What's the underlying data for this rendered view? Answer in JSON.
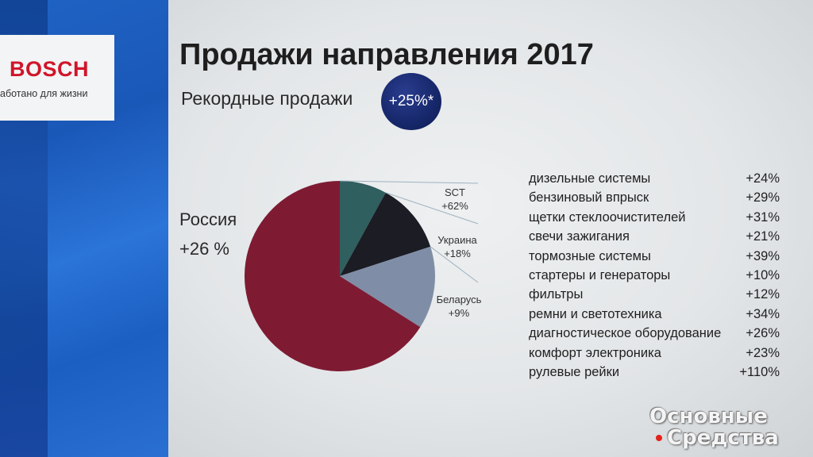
{
  "logo": {
    "brand": "BOSCH",
    "tagline": "аботано для жизни"
  },
  "title": "Продажи направления 2017",
  "subtitle": "Рекордные продажи",
  "badge": "+25%*",
  "chart_data": {
    "type": "pie",
    "title": "",
    "slices": [
      {
        "label": "Россия",
        "value": "+26 %",
        "share": 0.66,
        "color": "#7e1b33"
      },
      {
        "label": "SCT",
        "value": "+62%",
        "share": 0.08,
        "color": "#2f5f5e"
      },
      {
        "label": "Украина",
        "value": "+18%",
        "share": 0.12,
        "color": "#1b1c24"
      },
      {
        "label": "Беларусь",
        "value": "+9%",
        "share": 0.14,
        "color": "#7f8ea6"
      }
    ]
  },
  "products": [
    {
      "name": "дизельные системы",
      "value": "+24%"
    },
    {
      "name": "бензиновый впрыск",
      "value": "+29%"
    },
    {
      "name": "щетки стеклоочистителей",
      "value": "+31%"
    },
    {
      "name": "свечи зажигания",
      "value": "+21%"
    },
    {
      "name": "тормозные системы",
      "value": "+39%"
    },
    {
      "name": "стартеры и генераторы",
      "value": "+10%"
    },
    {
      "name": "фильтры",
      "value": "+12%"
    },
    {
      "name": "ремни и светотехника",
      "value": "+34%"
    },
    {
      "name": "диагностическое оборудование",
      "value": "+26%"
    },
    {
      "name": "комфорт электроника",
      "value": "+23%"
    },
    {
      "name": "рулевые рейки",
      "value": "+110%"
    }
  ],
  "watermark": {
    "line1": "Основные",
    "line2": "Средства",
    "dot_color": "#e2231a"
  }
}
